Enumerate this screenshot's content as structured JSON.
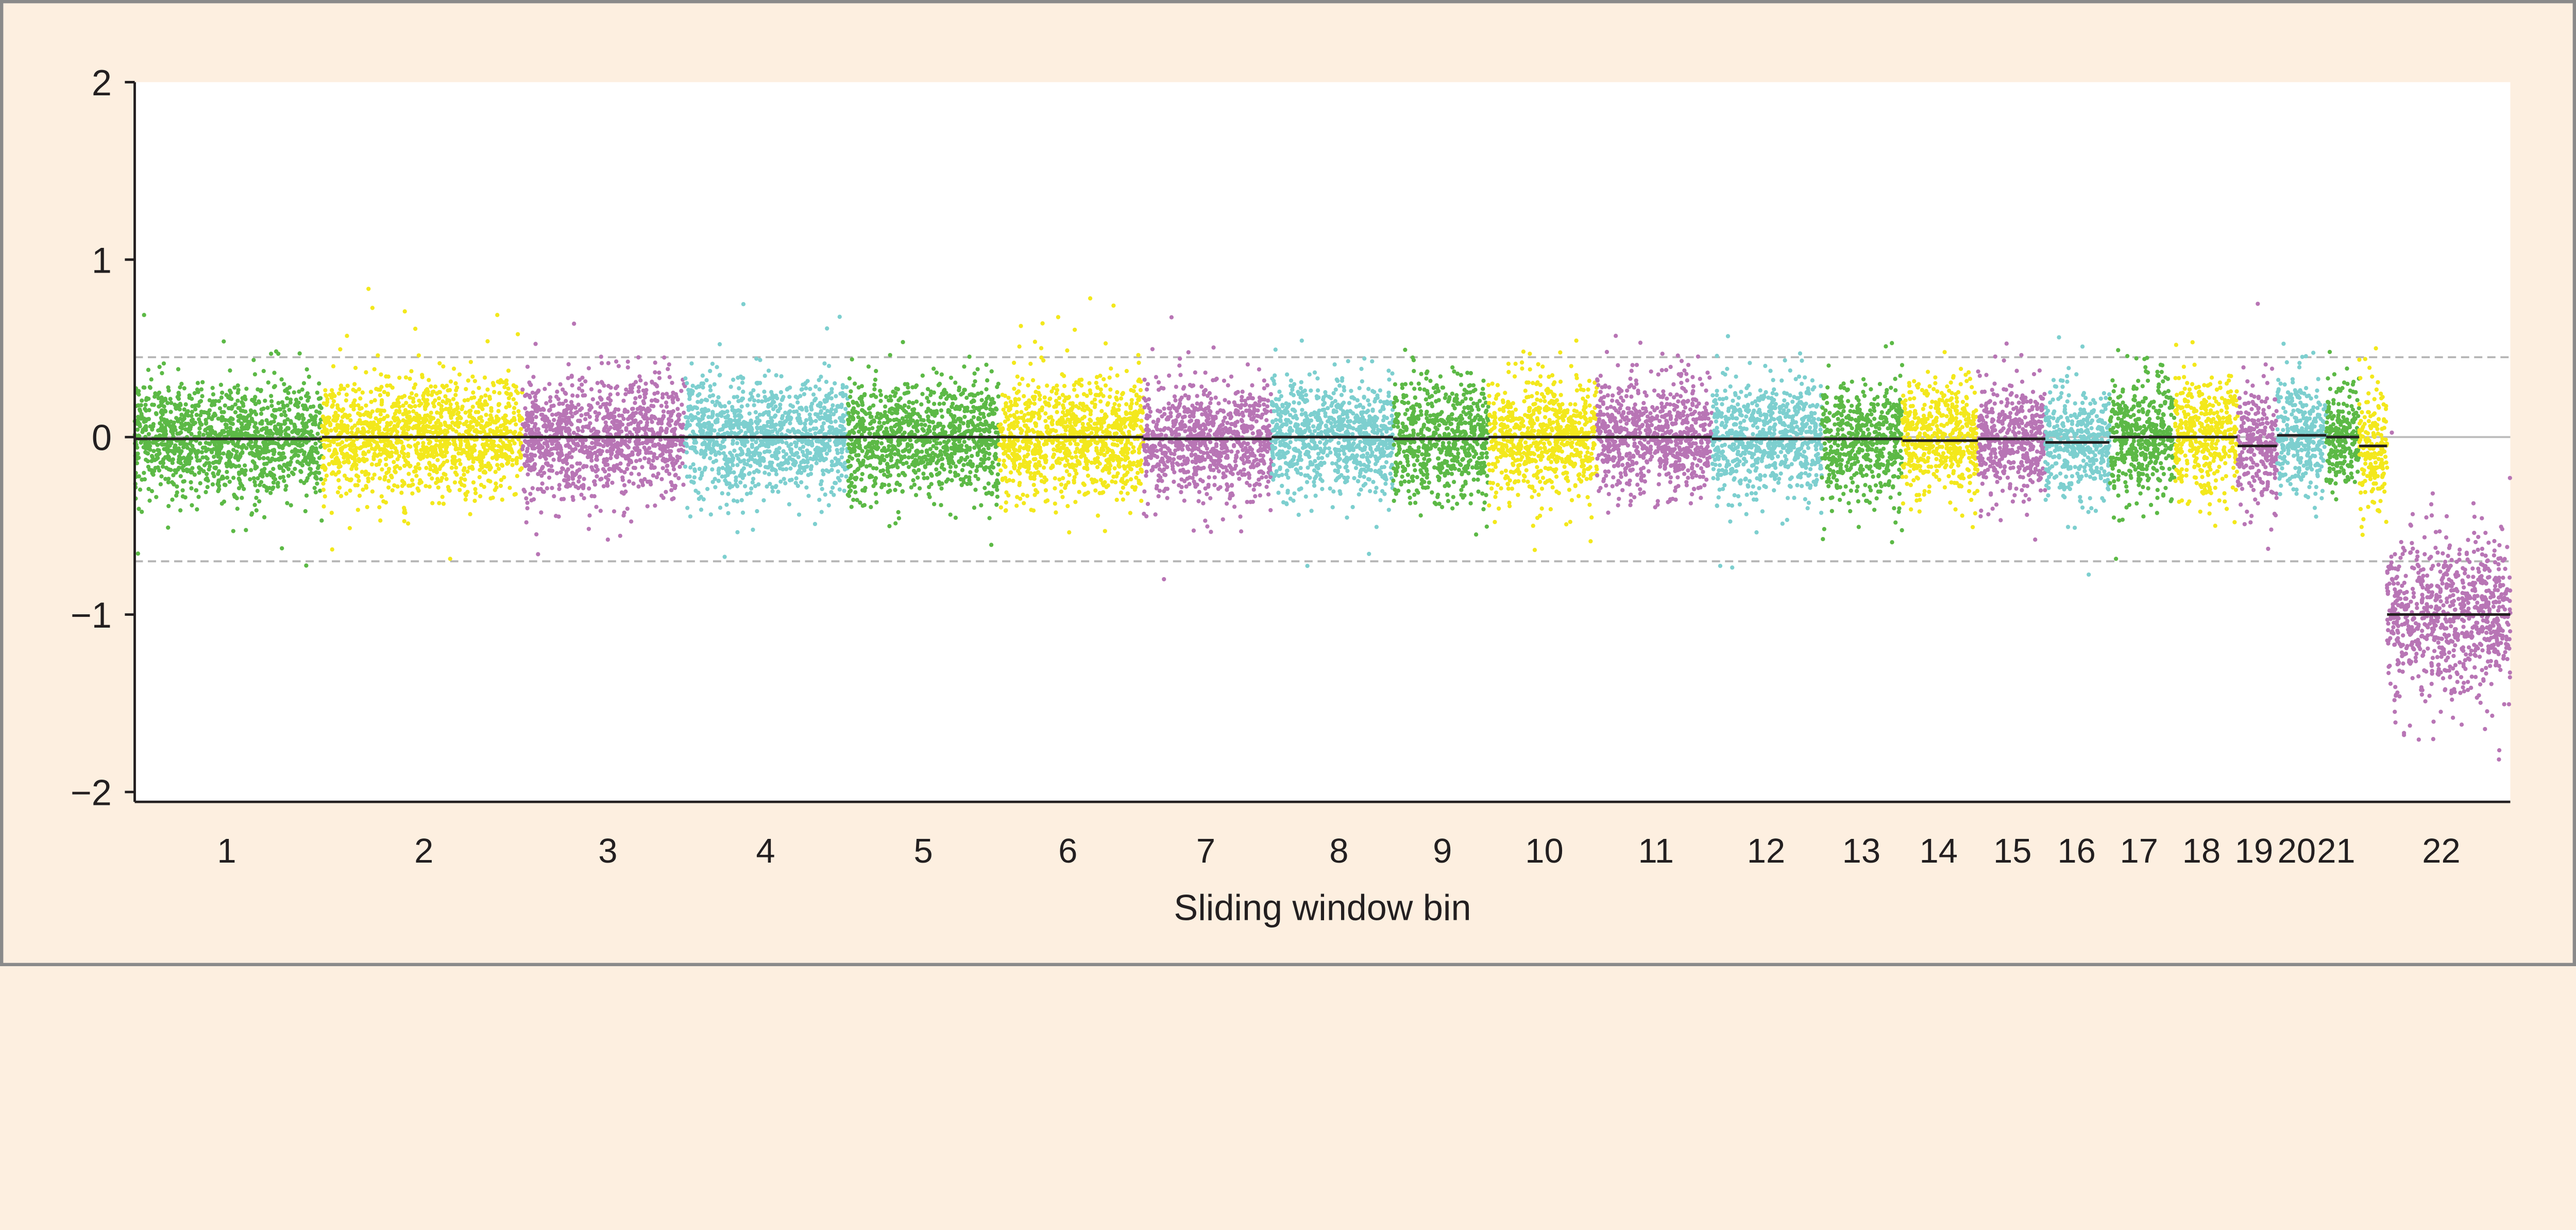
{
  "chart_data": {
    "type": "scatter",
    "title": "",
    "xlabel": "Sliding window bin",
    "ylabel": "",
    "ylim": [
      -2,
      2
    ],
    "xlim": [
      0,
      1446
    ],
    "yticks": [
      2,
      1,
      0,
      -1,
      -2
    ],
    "ytick_labels": [
      "2",
      "1",
      "0",
      "−1",
      "−2"
    ],
    "grid": false,
    "reference_lines": {
      "zero": 0,
      "upper_threshold": 0.45,
      "lower_threshold": -0.7
    },
    "colors": {
      "green": "#5cb946",
      "yellow": "#f3e81c",
      "purple": "#b875b5",
      "cyan": "#7dcfcf",
      "median": "#231f20",
      "background": "#fdefe0"
    },
    "segments": [
      {
        "label": "1",
        "start": 0,
        "end": 114,
        "color": "green",
        "median": -0.01,
        "spread": 0.2
      },
      {
        "label": "2",
        "start": 114,
        "end": 236,
        "color": "yellow",
        "median": 0.0,
        "spread": 0.2
      },
      {
        "label": "3",
        "start": 236,
        "end": 335,
        "color": "purple",
        "median": 0.0,
        "spread": 0.2
      },
      {
        "label": "4",
        "start": 335,
        "end": 434,
        "color": "cyan",
        "median": 0.0,
        "spread": 0.2
      },
      {
        "label": "5",
        "start": 434,
        "end": 526,
        "color": "green",
        "median": 0.0,
        "spread": 0.2
      },
      {
        "label": "6",
        "start": 526,
        "end": 614,
        "color": "yellow",
        "median": 0.0,
        "spread": 0.2
      },
      {
        "label": "7",
        "start": 614,
        "end": 692,
        "color": "purple",
        "median": -0.01,
        "spread": 0.2
      },
      {
        "label": "8",
        "start": 692,
        "end": 766,
        "color": "cyan",
        "median": 0.0,
        "spread": 0.2
      },
      {
        "label": "9",
        "start": 766,
        "end": 824,
        "color": "green",
        "median": -0.01,
        "spread": 0.2
      },
      {
        "label": "10",
        "start": 824,
        "end": 890,
        "color": "yellow",
        "median": 0.0,
        "spread": 0.2
      },
      {
        "label": "11",
        "start": 890,
        "end": 960,
        "color": "purple",
        "median": 0.0,
        "spread": 0.2
      },
      {
        "label": "12",
        "start": 960,
        "end": 1027,
        "color": "cyan",
        "median": -0.01,
        "spread": 0.2
      },
      {
        "label": "13",
        "start": 1027,
        "end": 1076,
        "color": "green",
        "median": -0.01,
        "spread": 0.2
      },
      {
        "label": "14",
        "start": 1076,
        "end": 1122,
        "color": "yellow",
        "median": -0.02,
        "spread": 0.2
      },
      {
        "label": "15",
        "start": 1122,
        "end": 1163,
        "color": "purple",
        "median": -0.01,
        "spread": 0.2
      },
      {
        "label": "16",
        "start": 1163,
        "end": 1202,
        "color": "cyan",
        "median": -0.03,
        "spread": 0.2
      },
      {
        "label": "17",
        "start": 1202,
        "end": 1242,
        "color": "green",
        "median": 0.0,
        "spread": 0.2
      },
      {
        "label": "18",
        "start": 1242,
        "end": 1280,
        "color": "yellow",
        "median": 0.0,
        "spread": 0.2
      },
      {
        "label": "19",
        "start": 1280,
        "end": 1304,
        "color": "purple",
        "median": -0.05,
        "spread": 0.2
      },
      {
        "label": "20",
        "start": 1304,
        "end": 1334,
        "color": "cyan",
        "median": 0.01,
        "spread": 0.2
      },
      {
        "label": "21",
        "start": 1334,
        "end": 1354,
        "color": "green",
        "median": 0.0,
        "spread": 0.2
      },
      {
        "label": "",
        "start": 1354,
        "end": 1371,
        "color": "yellow",
        "median": -0.05,
        "spread": 0.22
      },
      {
        "label": "22",
        "start": 1371,
        "end": 1446,
        "color": "purple",
        "median": -1.0,
        "spread": 0.28
      }
    ],
    "xtick_labels": [
      {
        "label": "1",
        "at": 56
      },
      {
        "label": "2",
        "at": 176
      },
      {
        "label": "3",
        "at": 288
      },
      {
        "label": "4",
        "at": 384
      },
      {
        "label": "5",
        "at": 480
      },
      {
        "label": "6",
        "at": 568
      },
      {
        "label": "7",
        "at": 652
      },
      {
        "label": "8",
        "at": 733
      },
      {
        "label": "9",
        "at": 796
      },
      {
        "label": "10",
        "at": 858
      },
      {
        "label": "11",
        "at": 926
      },
      {
        "label": "12",
        "at": 993
      },
      {
        "label": "13",
        "at": 1051
      },
      {
        "label": "14",
        "at": 1098
      },
      {
        "label": "15",
        "at": 1143
      },
      {
        "label": "16",
        "at": 1182
      },
      {
        "label": "17",
        "at": 1220
      },
      {
        "label": "18",
        "at": 1258
      },
      {
        "label": "19",
        "at": 1290
      },
      {
        "label": "20",
        "at": 1316
      },
      {
        "label": "21",
        "at": 1340
      },
      {
        "label": "22",
        "at": 1404
      }
    ]
  }
}
